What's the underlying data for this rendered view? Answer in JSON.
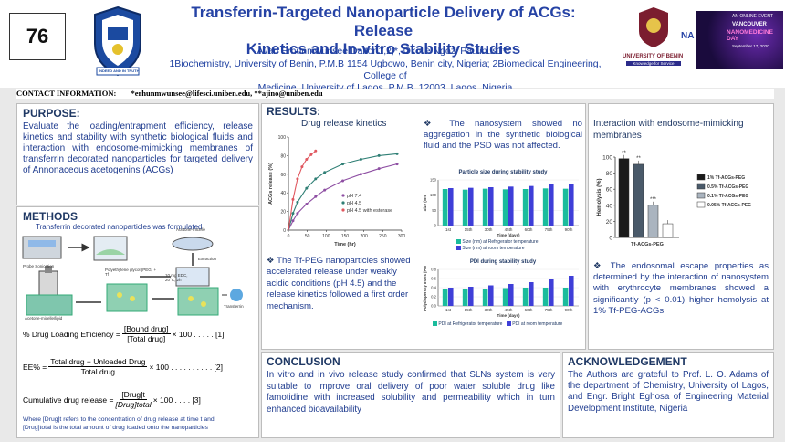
{
  "header": {
    "number": "76",
    "title_line1": "Transferrin-Targeted Nanoparticle Delivery of ACGs: Release",
    "title_line2": "Kinetics and In-vitro Stability Studies",
    "authors": "Avan Erhunmwunsee Dalton1,2,*, Okolie Ngozi Paulinus1**",
    "affil_line1": "1Biochemistry, University of Benin, P.M.B 1154 Ugbowo, Benin city, Nigeria; 2Biomedical Engineering,  College of",
    "affil_line2": "Medicine, University of Lagos, P.M.B. 12003, Lagos, Nigeria",
    "left_logo_text": "INDEED AND IN TRUTH",
    "uniben_text": "UNIVERSITY OF BENIN",
    "uniben_tag": "Knowledge for Service",
    "na_text": "NA",
    "conf_line1": "AN ONLINE EVENT",
    "conf_line2": "VANCOUVER",
    "conf_line3": "NANOMEDICINE DAY",
    "conf_date": "September 17, 2020"
  },
  "contact": {
    "label": "CONTACT INFORMATION:",
    "emails": "*erhunmwunsee@lifesci.uniben.edu, **ajino@uniben.edu"
  },
  "purpose": {
    "heading": "PURPOSE:",
    "text": "Evaluate the loading/entrapment efficiency, release kinetics and stability with synthetic biological fluids and interaction with endosome-mimicking membranes of transferrin decorated nanoparticles for targeted delivery of Annonaceous acetogenins (ACGs)"
  },
  "methods": {
    "heading": "METHODS",
    "subtitle": "Transferrin decorated nanoparticles was formulated",
    "diagram_labels": [
      "Acetone-micelle",
      "Extraction",
      "Probe Sonication",
      "Polyethylene glycol (PEG) + Tf",
      "Transferrin",
      "10 mg EDC, 20°C, 2h",
      "Acetone-micelle/lipid"
    ],
    "eq1_left": "% Drug Loading Efficiency = ",
    "eq1_num": "[Bound drug]",
    "eq1_den": "[Total drug]",
    "eq1_right": " × 100  . . . . . [1]",
    "eq2_left": "EE%  =  ",
    "eq2_num": "Total drug − Unloaded Drug",
    "eq2_den": "Total drug",
    "eq2_right": " × 100 . . . . . . . . . . [2]",
    "eq3_left": "Cumulative drug release = ",
    "eq3_num": "[Drug]t",
    "eq3_den": "[Drug]total",
    "eq3_right": " × 100  . . . . [3]",
    "note_line1": "Where [Drug]t refers to the concentration of drug release at time t and",
    "note_line2": "[Drug]total is the total amount of drug loaded onto the nanoparticles"
  },
  "results": {
    "heading": "RESULTS:",
    "release_title": "Drug release kinetics",
    "release_text": "The Tf-PEG nanoparticles showed accelerated release under weakly acidic conditions (pH 4.5) and the release kinetics followed a first order mechanism.",
    "stability_text": "The nanosystem showed no aggregation in the synthetic biological fluid and the PSD was not affected.",
    "hemo_title": "Interaction with endosome-mimicking membranes",
    "hemo_text": "The endosomal escape properties as determined by the interaction of nanosystem with erythrocyte membranes showed a significantly (p < 0.01) higher hemolysis at 1% Tf-PEG-ACGs"
  },
  "conclusion": {
    "heading": "CONCLUSION",
    "text": "In vitro and in vivo release study confirmed that SLNs system is very suitable to improve oral delivery of poor water soluble drug like famotidine with increased solubility and permeability which in turn enhanced bioavailability"
  },
  "ack": {
    "heading": "ACKNOWLEDGEMENT",
    "text": "The Authors are grateful to Prof. L. O. Adams of the department of Chemistry, University of Lagos, and Engr. Bright Eghosa of Engineering Material Development Institute, Nigeria"
  },
  "chart_data": [
    {
      "type": "line",
      "title": "",
      "xlabel": "Time (hr)",
      "ylabel": "ACGs release (%)",
      "xlim": [
        0,
        300
      ],
      "ylim": [
        0,
        100
      ],
      "xticks": [
        0,
        50,
        100,
        150,
        200,
        250,
        300
      ],
      "yticks": [
        0,
        20,
        40,
        60,
        80,
        100
      ],
      "series": [
        {
          "name": "pH 7.4",
          "color": "#8e4fa3",
          "x": [
            0,
            12,
            24,
            48,
            72,
            96,
            144,
            192,
            240,
            288
          ],
          "y": [
            0,
            10,
            18,
            28,
            36,
            43,
            53,
            60,
            66,
            71
          ]
        },
        {
          "name": "pH 4.5",
          "color": "#2f7f75",
          "x": [
            0,
            12,
            24,
            48,
            72,
            96,
            144,
            192,
            240,
            288
          ],
          "y": [
            0,
            18,
            30,
            45,
            55,
            62,
            71,
            76,
            80,
            82
          ]
        },
        {
          "name": "pH 4.5 with esterase",
          "color": "#e0575f",
          "x": [
            0,
            12,
            24,
            36,
            48,
            60,
            72
          ],
          "y": [
            0,
            33,
            55,
            68,
            76,
            81,
            85
          ]
        }
      ],
      "legend": "right"
    },
    {
      "type": "bar",
      "title": "Particle size during stability study",
      "xlabel": "Time (days)",
      "ylabel": "Size (nm)",
      "ylim": [
        0,
        150
      ],
      "yticks": [
        0,
        50,
        100,
        150
      ],
      "categories": [
        "1st",
        "15th",
        "30th",
        "45th",
        "60th",
        "75th",
        "90th"
      ],
      "series": [
        {
          "name": "Size (nm) at Refrigerator temperature",
          "color": "#1abc9c",
          "values": [
            120,
            118,
            121,
            119,
            120,
            122,
            121
          ]
        },
        {
          "name": "Size (nm) at room temperature",
          "color": "#3f3fd8",
          "values": [
            123,
            124,
            126,
            128,
            130,
            136,
            138
          ]
        }
      ],
      "legend": "bottom"
    },
    {
      "type": "bar",
      "title": "PDI during stability study",
      "xlabel": "Time (days)",
      "ylabel": "Polydispersity Index (PDI)",
      "ylim": [
        0,
        0.8
      ],
      "yticks": [
        0,
        0.2,
        0.4,
        0.6,
        0.8
      ],
      "categories": [
        "1st",
        "15th",
        "30th",
        "45th",
        "60th",
        "75th",
        "90th"
      ],
      "series": [
        {
          "name": "PDI at Refrigerator temperature",
          "color": "#1abc9c",
          "values": [
            0.38,
            0.38,
            0.38,
            0.39,
            0.4,
            0.4,
            0.4
          ]
        },
        {
          "name": "PDI at room temperature",
          "color": "#3f3fd8",
          "values": [
            0.4,
            0.42,
            0.45,
            0.48,
            0.52,
            0.6,
            0.66
          ]
        }
      ],
      "legend": "bottom"
    },
    {
      "type": "bar",
      "title": "",
      "xlabel": "Tf-ACGs-PEG",
      "ylabel": "Hemolysis (%)",
      "ylim": [
        0,
        100
      ],
      "yticks": [
        0,
        20,
        40,
        60,
        80,
        100
      ],
      "categories": [
        "1% Tf-ACGs-PEG",
        "0.5% Tf-ACGs-PEG",
        "0.1% Tf-ACGs-PEG",
        "0.05% Tf-ACGs-PEG"
      ],
      "values": [
        98,
        91,
        40,
        17
      ],
      "colors": [
        "#1a1a1a",
        "#4a5a6a",
        "#aab4bf",
        "#ffffff"
      ],
      "significance": [
        "**",
        "**",
        "***",
        ""
      ],
      "legend": "right"
    }
  ]
}
